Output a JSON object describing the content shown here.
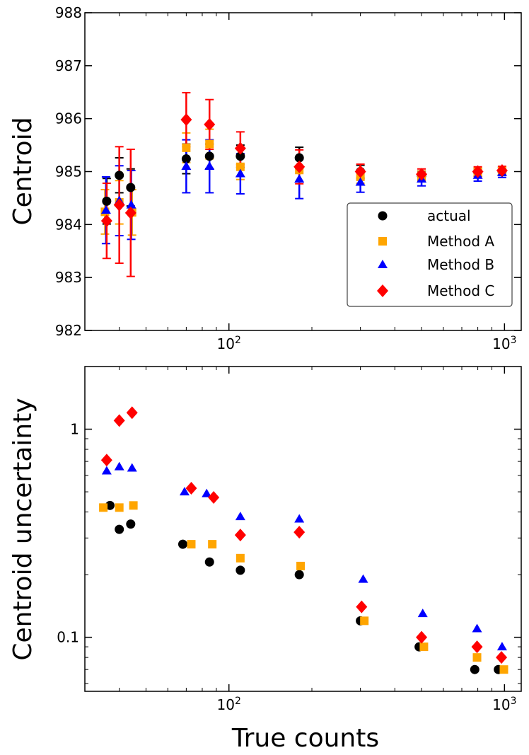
{
  "colors": {
    "actual": "#000000",
    "method_a": "#FFA500",
    "method_b": "#0000FF",
    "method_c": "#FF0000"
  },
  "chart_data": [
    {
      "type": "scatter",
      "panel": "top",
      "title": "",
      "xlabel": "",
      "ylabel": "Centroid",
      "xscale": "log",
      "xlim": [
        30,
        1150
      ],
      "ylim": [
        982,
        988
      ],
      "yticks": [
        "982",
        "983",
        "984",
        "985",
        "986",
        "987",
        "988"
      ],
      "xticks": [
        {
          "value": 100,
          "base": "10",
          "exp": "2"
        },
        {
          "value": 1000,
          "base": "10",
          "exp": "3"
        }
      ],
      "legend": {
        "placement": "lower-right",
        "entries": [
          "actual",
          "Method A",
          "Method B",
          "Method C"
        ]
      },
      "series": [
        {
          "name": "actual",
          "marker": "circle",
          "x": [
            36,
            40,
            44,
            70,
            85,
            110,
            180,
            300,
            500,
            800,
            980
          ],
          "y": [
            984.44,
            984.93,
            984.7,
            985.24,
            985.29,
            985.29,
            985.26,
            985.0,
            984.92,
            984.99,
            985.01
          ],
          "err": [
            0.43,
            0.33,
            0.35,
            0.28,
            0.23,
            0.21,
            0.2,
            0.12,
            0.09,
            0.07,
            0.07
          ]
        },
        {
          "name": "Method A",
          "marker": "square",
          "x": [
            35.5,
            40,
            44.5,
            70,
            85,
            110,
            180,
            300,
            500,
            800,
            980
          ],
          "y": [
            984.24,
            984.42,
            984.23,
            985.45,
            985.52,
            985.09,
            985.03,
            984.9,
            984.92,
            984.99,
            985.01
          ],
          "err": [
            0.42,
            0.41,
            0.43,
            0.28,
            0.28,
            0.24,
            0.22,
            0.12,
            0.09,
            0.08,
            0.07
          ]
        },
        {
          "name": "Method B",
          "marker": "triangle",
          "x": [
            35.8,
            40,
            44.2,
            70,
            85,
            110,
            180,
            300,
            500,
            800,
            980
          ],
          "y": [
            984.27,
            984.45,
            984.37,
            985.1,
            985.1,
            984.96,
            984.86,
            984.8,
            984.86,
            984.93,
            984.98
          ],
          "err": [
            0.63,
            0.66,
            0.65,
            0.5,
            0.5,
            0.38,
            0.37,
            0.19,
            0.13,
            0.11,
            0.09
          ]
        },
        {
          "name": "Method C",
          "marker": "diamond",
          "x": [
            36,
            40,
            44,
            70,
            85,
            110,
            180,
            300,
            500,
            800,
            980
          ],
          "y": [
            984.07,
            984.37,
            984.22,
            985.98,
            985.89,
            985.44,
            985.09,
            985.0,
            984.95,
            985.0,
            985.02
          ],
          "err": [
            0.71,
            1.1,
            1.2,
            0.51,
            0.47,
            0.31,
            0.32,
            0.14,
            0.1,
            0.09,
            0.08
          ]
        }
      ]
    },
    {
      "type": "scatter",
      "panel": "bottom",
      "title": "",
      "xlabel": "True counts",
      "ylabel": "Centroid uncertainty",
      "xscale": "log",
      "yscale": "log",
      "xlim": [
        30,
        1150
      ],
      "ylim": [
        0.055,
        2.0
      ],
      "yticks": [
        "0.1",
        "1"
      ],
      "xticks": [
        {
          "value": 100,
          "base": "10",
          "exp": "2"
        },
        {
          "value": 1000,
          "base": "10",
          "exp": "3"
        }
      ],
      "series": [
        {
          "name": "actual",
          "marker": "circle",
          "x": [
            37,
            40,
            44,
            68,
            85,
            110,
            180,
            300,
            490,
            780,
            950
          ],
          "y": [
            0.43,
            0.33,
            0.35,
            0.28,
            0.23,
            0.21,
            0.2,
            0.12,
            0.09,
            0.07,
            0.07
          ]
        },
        {
          "name": "Method A",
          "marker": "square",
          "x": [
            35,
            40,
            45,
            73,
            87,
            110,
            182,
            310,
            510,
            795,
            995
          ],
          "y": [
            0.42,
            0.42,
            0.43,
            0.28,
            0.28,
            0.24,
            0.22,
            0.12,
            0.09,
            0.08,
            0.07
          ]
        },
        {
          "name": "Method B",
          "marker": "triangle",
          "x": [
            36,
            40,
            44.5,
            69,
            83,
            110,
            180,
            307,
            505,
            795,
            980
          ],
          "y": [
            0.63,
            0.66,
            0.65,
            0.5,
            0.49,
            0.38,
            0.37,
            0.19,
            0.13,
            0.11,
            0.09
          ]
        },
        {
          "name": "Method C",
          "marker": "diamond",
          "x": [
            36,
            40,
            44.5,
            73,
            88,
            110,
            180,
            303,
            500,
            795,
            975
          ],
          "y": [
            0.71,
            1.1,
            1.2,
            0.52,
            0.47,
            0.31,
            0.32,
            0.14,
            0.1,
            0.09,
            0.08
          ]
        }
      ]
    }
  ]
}
